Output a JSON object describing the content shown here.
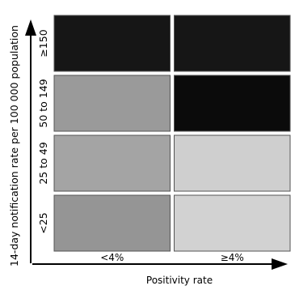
{
  "chart_data": {
    "type": "heatmap",
    "title": "",
    "xlabel": "Positivity rate",
    "ylabel": "14-day notification rate per 100 000 population",
    "x_categories": [
      "<4%",
      "≥4%"
    ],
    "y_categories": [
      "≥150",
      "50 to 149",
      "25 to 49",
      "<25"
    ],
    "cells": [
      {
        "row": "≥150",
        "col": "<4%",
        "shade": "dark",
        "color": "#161616"
      },
      {
        "row": "≥150",
        "col": "≥4%",
        "shade": "dark",
        "color": "#161616"
      },
      {
        "row": "50 to 149",
        "col": "<4%",
        "shade": "grey",
        "color": "#9a9a9a"
      },
      {
        "row": "50 to 149",
        "col": "≥4%",
        "shade": "dark",
        "color": "#0b0b0b"
      },
      {
        "row": "25 to 49",
        "col": "<4%",
        "shade": "grey",
        "color": "#a4a4a4"
      },
      {
        "row": "25 to 49",
        "col": "≥4%",
        "shade": "light-grey",
        "color": "#cfcfcf"
      },
      {
        "row": "<25",
        "col": "<4%",
        "shade": "grey",
        "color": "#959595"
      },
      {
        "row": "<25",
        "col": "≥4%",
        "shade": "light-grey",
        "color": "#d2d2d2"
      }
    ],
    "grid": false,
    "legend": "none"
  }
}
